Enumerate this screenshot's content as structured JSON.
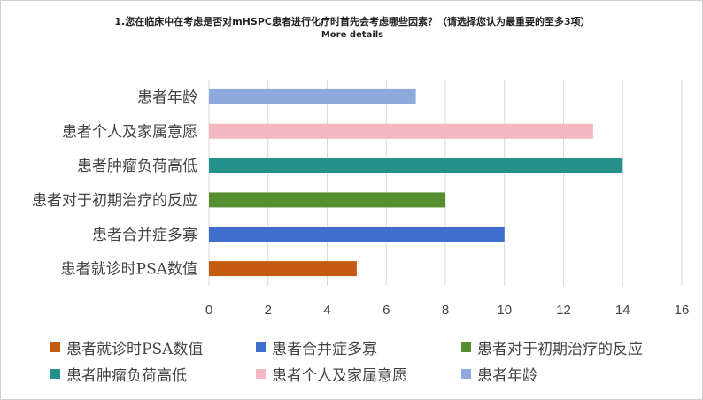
{
  "chart_data": {
    "type": "bar",
    "orientation": "horizontal",
    "title": "1.您在临床中在考虑是否对mHSPC患者进行化疗时首先会考虑哪些因素？（请选择您认为最重要的至多3项）",
    "subtitle": "More details",
    "categories": [
      "患者年龄",
      "患者个人及家属意愿",
      "患者肿瘤负荷高低",
      "患者对于初期治疗的反应",
      "患者合并症多寡",
      "患者就诊时PSA数值"
    ],
    "values": [
      7,
      13,
      14,
      8,
      10,
      5
    ],
    "colors": [
      "#8eaadc",
      "#f4b8c1",
      "#24918a",
      "#548e30",
      "#3e6fcf",
      "#c55a11"
    ],
    "xlim": [
      0,
      16
    ],
    "xticks": [
      0,
      2,
      4,
      6,
      8,
      10,
      12,
      14,
      16
    ],
    "grid": true,
    "legend_position": "bottom",
    "legend": [
      {
        "label": "患者就诊时PSA数值",
        "color": "#c55a11"
      },
      {
        "label": "患者合并症多寡",
        "color": "#3e6fcf"
      },
      {
        "label": "患者对于初期治疗的反应",
        "color": "#548e30"
      },
      {
        "label": "患者肿瘤负荷高低",
        "color": "#24918a"
      },
      {
        "label": "患者个人及家属意愿",
        "color": "#f4b8c1"
      },
      {
        "label": "患者年龄",
        "color": "#8eaadc"
      }
    ]
  }
}
